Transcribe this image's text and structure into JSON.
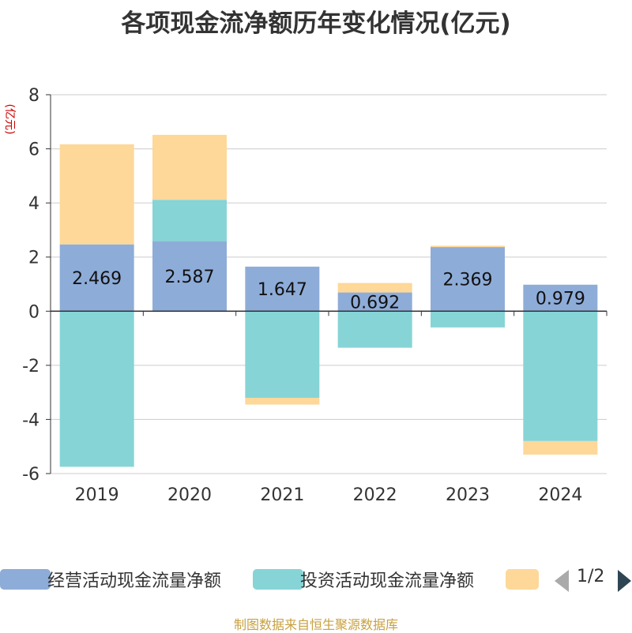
{
  "title": "各项现金流净额历年变化情况(亿元)",
  "source_note": "制图数据来自恒生聚源数据库",
  "pager": {
    "text": "1/2"
  },
  "colors": {
    "operating": "#8eacd8",
    "investing": "#86d4d6",
    "financing": "#fdd899",
    "axis": "#333333",
    "grid": "#cccccc",
    "ylabel": "#cc0000",
    "pager_prev": "#aaaaaa",
    "pager_next": "#2f4554"
  },
  "chart_data": {
    "type": "bar",
    "stacked": true,
    "title": "各项现金流净额历年变化情况(亿元)",
    "ylabel": "(亿元)",
    "xlabel": "",
    "categories": [
      "2019",
      "2020",
      "2021",
      "2022",
      "2023",
      "2024"
    ],
    "ylim": [
      -6,
      8
    ],
    "yticks": [
      -6,
      -4,
      -2,
      0,
      2,
      4,
      6,
      8
    ],
    "grid": true,
    "series": [
      {
        "name": "经营活动现金流量净额",
        "color_key": "operating",
        "values": [
          2.469,
          2.587,
          1.647,
          0.692,
          2.369,
          0.979
        ],
        "labels": [
          "2.469",
          "2.587",
          "1.647",
          "0.692",
          "2.369",
          "0.979"
        ]
      },
      {
        "name": "投资活动现金流量净额",
        "color_key": "investing",
        "values": [
          -5.75,
          1.53,
          -3.2,
          -1.35,
          -0.6,
          -4.8
        ]
      },
      {
        "name": "",
        "color_key": "financing",
        "values": [
          3.7,
          2.4,
          -0.25,
          0.35,
          0.05,
          -0.5
        ]
      }
    ]
  },
  "legend": [
    {
      "label": "经营活动现金流量净额",
      "color_key": "operating"
    },
    {
      "label": "投资活动现金流量净额",
      "color_key": "investing"
    },
    {
      "label": "",
      "color_key": "financing"
    }
  ]
}
